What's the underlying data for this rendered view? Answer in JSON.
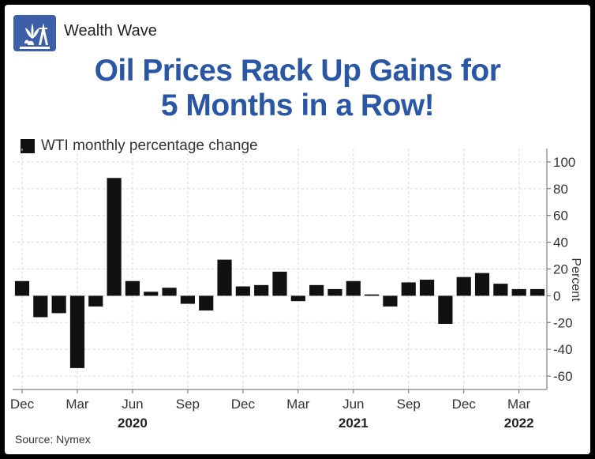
{
  "brand": {
    "name": "Wealth Wave",
    "logo_icon": "oil-derrick-cannabis-leaf-icon"
  },
  "title_lines": [
    "Oil Prices Rack Up Gains for",
    "5 Months in a Row!"
  ],
  "source": "Source: Nymex",
  "colors": {
    "title": "#2a57a5",
    "bars": "#111111",
    "logo_bg": "#3d5fa8"
  },
  "chart_data": {
    "type": "bar",
    "title": "Oil Prices Rack Up Gains for 5 Months in a Row!",
    "ylabel": "Percent",
    "ylim": [
      -70,
      110
    ],
    "yticks": [
      100,
      80,
      60,
      40,
      20,
      0,
      -20,
      -40,
      -60
    ],
    "grid": true,
    "legend": "top-left",
    "y_axis_side": "right",
    "series": [
      {
        "name": "WTI monthly percentage change",
        "categories": [
          "2019-12",
          "2020-01",
          "2020-02",
          "2020-03",
          "2020-04",
          "2020-05",
          "2020-06",
          "2020-07",
          "2020-08",
          "2020-09",
          "2020-10",
          "2020-11",
          "2020-12",
          "2021-01",
          "2021-02",
          "2021-03",
          "2021-04",
          "2021-05",
          "2021-06",
          "2021-07",
          "2021-08",
          "2021-09",
          "2021-10",
          "2021-11",
          "2021-12",
          "2022-01",
          "2022-02",
          "2022-03",
          "2022-04"
        ],
        "values": [
          11,
          -16,
          -13,
          -54,
          -8,
          88,
          11,
          3,
          6,
          -6,
          -11,
          27,
          7,
          8,
          18,
          -4,
          8,
          5,
          11,
          1,
          -8,
          10,
          12,
          -21,
          14,
          17,
          9,
          5,
          5
        ]
      }
    ],
    "x_tick_labels": [
      {
        "label": "Dec",
        "category": "2019-12"
      },
      {
        "label": "Mar",
        "category": "2020-03"
      },
      {
        "label": "Jun",
        "category": "2020-06"
      },
      {
        "label": "Sep",
        "category": "2020-09"
      },
      {
        "label": "Dec",
        "category": "2020-12"
      },
      {
        "label": "Mar",
        "category": "2021-03"
      },
      {
        "label": "Jun",
        "category": "2021-06"
      },
      {
        "label": "Sep",
        "category": "2021-09"
      },
      {
        "label": "Dec",
        "category": "2021-12"
      },
      {
        "label": "Mar",
        "category": "2022-03"
      }
    ],
    "year_labels": [
      {
        "label": "2020",
        "category": "2020-06"
      },
      {
        "label": "2021",
        "category": "2021-06"
      },
      {
        "label": "2022",
        "category": "2022-03"
      }
    ]
  }
}
